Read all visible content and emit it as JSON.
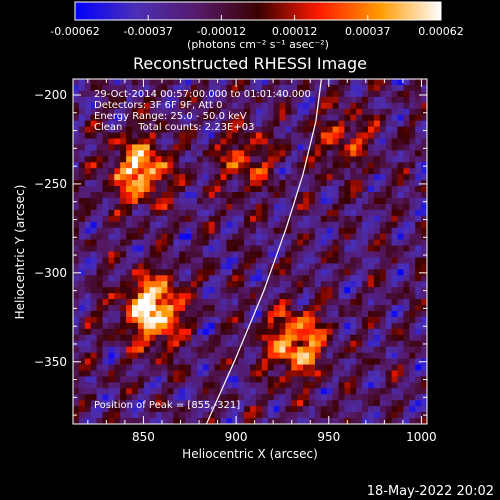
{
  "chart_data": {
    "type": "heatmap",
    "title": "Reconstructed RHESSI Image",
    "xlabel": "Heliocentric X (arcsec)",
    "ylabel": "Heliocentric Y (arcsec)",
    "xlim": [
      812,
      1003
    ],
    "ylim": [
      -385,
      -191
    ],
    "x_ticks": [
      850,
      900,
      950,
      1000
    ],
    "y_ticks": [
      -200,
      -250,
      -300,
      -350
    ],
    "colorbar": {
      "min": -0.00062,
      "max": 0.00062,
      "ticks": [
        "-0.00062",
        "-0.00037",
        "-0.00012",
        "0.00012",
        "0.00037",
        "0.00062"
      ],
      "unit_label": "(photons cm⁻² s⁻¹ asec⁻²)",
      "colormap": [
        "#0000ff",
        "#4b2fb6",
        "#551a6a",
        "#3a0000",
        "#ff1b00",
        "#ff9a00",
        "#ffffff"
      ]
    },
    "annotations": [
      "29-Oct-2014 00:57:00.000 to 01:01:40.000",
      "Detectors: 3F 6F 9F, Att 0",
      "Energy Range: 25.0 - 50.0 keV",
      "Clean     Total counts: 2.23E+03"
    ],
    "peak_label": "Position of Peak = [855,-321]",
    "peak": {
      "x": 855,
      "y": -321
    },
    "sources": [
      {
        "x": 855,
        "y": -321,
        "intensity": 1.0
      },
      {
        "x": 848,
        "y": -242,
        "intensity": 0.82
      },
      {
        "x": 932,
        "y": -340,
        "intensity": 0.78
      },
      {
        "x": 905,
        "y": -236,
        "intensity": 0.45
      },
      {
        "x": 958,
        "y": -225,
        "intensity": 0.4
      }
    ],
    "limb_curve": {
      "x": [
        884,
        899,
        915,
        927,
        936,
        943,
        946
      ],
      "y": [
        -385,
        -350,
        -310,
        -275,
        -245,
        -215,
        -191
      ]
    },
    "timestamp": "18-May-2022 20:02"
  }
}
